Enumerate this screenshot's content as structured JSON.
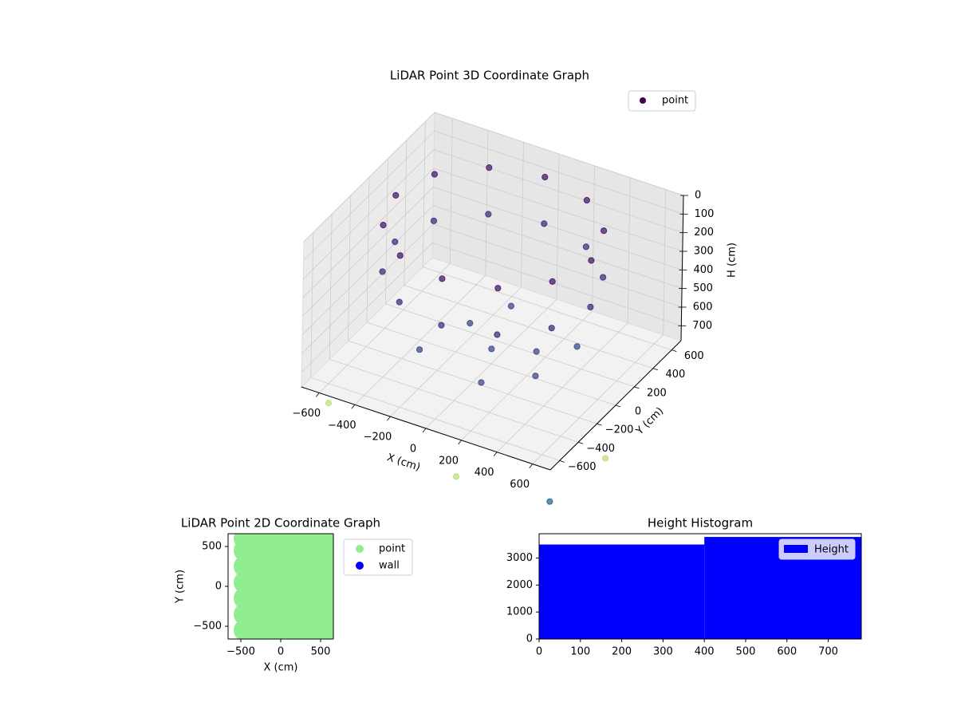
{
  "chart_data": [
    {
      "type": "scatter3d",
      "title": "LiDAR Point 3D Coordinate Graph",
      "xlabel": "X (cm)",
      "ylabel": "Y (cm)",
      "zlabel": "H (cm)",
      "xlim": [
        -700,
        700
      ],
      "ylim": [
        -700,
        700
      ],
      "zlim": [
        0,
        780
      ],
      "z_inverted": true,
      "xticks": [
        {
          "value": -600,
          "label": "−600"
        },
        {
          "value": -400,
          "label": "−400"
        },
        {
          "value": -200,
          "label": "−200"
        },
        0,
        200,
        400,
        600
      ],
      "yticks": [
        {
          "value": -600,
          "label": "−600"
        },
        {
          "value": -400,
          "label": "−400"
        },
        {
          "value": -200,
          "label": "−200"
        },
        0,
        200,
        400,
        600
      ],
      "zticks": [
        0,
        100,
        200,
        300,
        400,
        500,
        600,
        700
      ],
      "grid": true,
      "series": [
        {
          "name": "point",
          "color": "#440154",
          "x": [
            550,
            476,
            275,
            0,
            -275,
            -476,
            -550,
            -476,
            -275,
            0,
            275,
            476,
            550,
            476,
            275,
            0,
            -275,
            -476,
            -550,
            -476,
            -275,
            0,
            275,
            476,
            0,
            200,
            -200,
            100,
            -300,
            350,
            -100,
            300,
            -650,
            200,
            700,
            750
          ],
          "y": [
            0,
            275,
            476,
            550,
            476,
            275,
            0,
            -275,
            -476,
            -550,
            -476,
            -275,
            0,
            275,
            476,
            550,
            476,
            275,
            0,
            -275,
            -476,
            -550,
            -476,
            -275,
            0,
            100,
            150,
            -300,
            -200,
            250,
            400,
            -100,
            -500,
            -750,
            -700,
            -200
          ],
          "z": [
            50,
            50,
            50,
            50,
            50,
            50,
            50,
            50,
            50,
            50,
            50,
            50,
            300,
            300,
            300,
            300,
            300,
            300,
            300,
            300,
            300,
            300,
            300,
            300,
            700,
            700,
            700,
            700,
            700,
            700,
            700,
            700,
            950,
            950,
            950,
            950
          ],
          "colors": [
            "#481b6d",
            "#481b6d",
            "#481b6d",
            "#481b6d",
            "#481b6d",
            "#481b6d",
            "#481b6d",
            "#481b6d",
            "#481b6d",
            "#481b6d",
            "#481b6d",
            "#481b6d",
            "#472d7b",
            "#472d7b",
            "#472d7b",
            "#472d7b",
            "#472d7b",
            "#472d7b",
            "#472d7b",
            "#472d7b",
            "#472d7b",
            "#472d7b",
            "#472d7b",
            "#472d7b",
            "#3e4a89",
            "#3e4a89",
            "#3e4a89",
            "#3e4a89",
            "#3e4a89",
            "#3e4a89",
            "#3e4a89",
            "#3e4a89",
            "#bfe07a",
            "#bfe07a",
            "#31688e",
            "#bfe07a"
          ]
        }
      ]
    },
    {
      "type": "scatter",
      "title": "LiDAR Point 2D Coordinate Graph",
      "xlabel": "X (cm)",
      "ylabel": "Y (cm)",
      "xlim": [
        -660,
        660
      ],
      "ylim": [
        -660,
        660
      ],
      "xticks": [
        {
          "value": -500,
          "label": "−500"
        },
        0,
        500
      ],
      "yticks": [
        {
          "value": -500,
          "label": "−500"
        },
        0,
        500
      ],
      "series": [
        {
          "name": "point",
          "color": "#90ee90",
          "x": [
            -450,
            -250,
            -50,
            150,
            350,
            550,
            -450,
            -250,
            -50,
            150,
            350,
            550,
            -450,
            -250,
            -50,
            150,
            350,
            550,
            -450,
            -250,
            -50,
            150,
            350,
            550,
            -450,
            -250,
            -50,
            150,
            350,
            550,
            -450,
            -250,
            -50,
            150,
            350,
            550,
            -450,
            -250,
            -50,
            150,
            350,
            550
          ],
          "y": [
            -550,
            -550,
            -550,
            -550,
            -550,
            -550,
            -350,
            -350,
            -350,
            -350,
            -350,
            -350,
            -150,
            -150,
            -150,
            -150,
            -150,
            -150,
            50,
            50,
            50,
            50,
            50,
            50,
            250,
            250,
            250,
            250,
            250,
            250,
            450,
            450,
            450,
            450,
            450,
            450,
            600,
            600,
            600,
            600,
            600,
            600
          ]
        },
        {
          "name": "wall",
          "color": "#0000ff",
          "x": [],
          "y": []
        }
      ]
    },
    {
      "type": "histogram",
      "title": "Height Histogram",
      "xlim": [
        0,
        780
      ],
      "ylim": [
        0,
        3900
      ],
      "xticks": [
        0,
        100,
        200,
        300,
        400,
        500,
        600,
        700
      ],
      "yticks": [
        0,
        1000,
        2000,
        3000
      ],
      "bins": [
        0,
        400,
        780
      ],
      "series": [
        {
          "name": "Height",
          "color": "#0000ff",
          "values": [
            3500,
            3780
          ]
        }
      ]
    }
  ]
}
